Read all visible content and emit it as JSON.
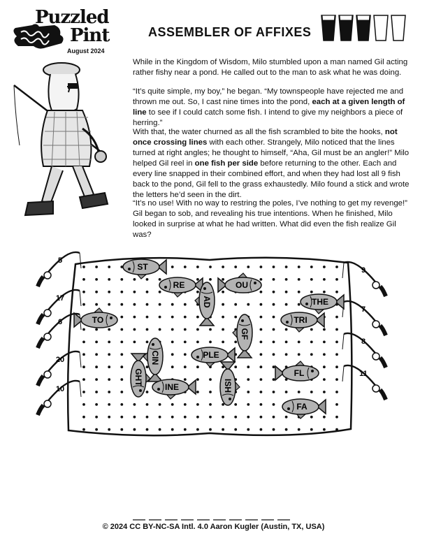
{
  "logo": {
    "line1": "Puzzled",
    "line2": "Pint",
    "date": "August 2024"
  },
  "title": "ASSEMBLER OF AFFIXES",
  "difficulty": {
    "filled": 3,
    "total": 5,
    "icon": "pint-glass-icon"
  },
  "story": {
    "p1": "While in the Kingdom of Wisdom, Milo stumbled upon a man named Gil acting rather fishy near a pond. He called out to the man to ask what he was doing.",
    "p2_a": "“It’s quite simple, my boy,” he began. “My townspeople have rejected me and thrown me out. So, I cast nine times into the pond, ",
    "p2_b": "each at a given length of line",
    "p2_c": " to see if I could catch some fish. I intend to give my neighbors a piece of herring.”",
    "p3_a": "With that, the water churned as all the fish scrambled to bite the hooks, ",
    "p3_b": "not once crossing lines",
    "p3_c": " with each other. Strangely, Milo noticed that the lines turned at right angles; he thought to himself, “Aha, Gil must be an angler!” Milo helped Gil reel in ",
    "p3_d": "one fish per side",
    "p3_e": " before returning to the other. Each and every line snapped in their combined effort, and when they had lost all 9 fish back to the pond, Gil fell to the grass exhaustedly. Milo found a stick and wrote the letters he’d seen in the dirt.",
    "p4": "“It’s no use! With no way to restring the poles, I’ve nothing to get my revenge!” Gil began to sob, and revealing his true intentions. When he finished, Milo looked in surprise at what he had written. What did even the fish realize Gil was?"
  },
  "rods_left": [
    {
      "label": "5",
      "icon": "fishing-rod-icon"
    },
    {
      "label": "17",
      "icon": "fishing-rod-icon"
    },
    {
      "label": "6",
      "icon": "fishing-rod-icon"
    },
    {
      "label": "20",
      "icon": "fishing-rod-icon"
    },
    {
      "label": "10",
      "icon": "fishing-rod-icon"
    }
  ],
  "rods_right": [
    {
      "label": "9",
      "icon": "fishing-rod-icon"
    },
    {
      "label": "7",
      "icon": "fishing-rod-icon"
    },
    {
      "label": "8",
      "icon": "fishing-rod-icon"
    },
    {
      "label": "11",
      "icon": "fishing-rod-icon"
    }
  ],
  "fish": [
    {
      "label": "ST",
      "orientation": "horizontal",
      "facing": "left"
    },
    {
      "label": "RE",
      "orientation": "horizontal",
      "facing": "left"
    },
    {
      "label": "OU",
      "orientation": "horizontal",
      "facing": "right"
    },
    {
      "label": "AD",
      "orientation": "vertical",
      "facing": "up"
    },
    {
      "label": "THE",
      "orientation": "horizontal",
      "facing": "left"
    },
    {
      "label": "TO",
      "orientation": "horizontal",
      "facing": "right"
    },
    {
      "label": "TRI",
      "orientation": "horizontal",
      "facing": "left"
    },
    {
      "label": "GF",
      "orientation": "vertical",
      "facing": "up"
    },
    {
      "label": "CIN",
      "orientation": "vertical",
      "facing": "up"
    },
    {
      "label": "PLE",
      "orientation": "horizontal",
      "facing": "left"
    },
    {
      "label": "GHT",
      "orientation": "vertical",
      "facing": "down"
    },
    {
      "label": "FL",
      "orientation": "horizontal",
      "facing": "right"
    },
    {
      "label": "ISH",
      "orientation": "vertical",
      "facing": "down"
    },
    {
      "label": "INE",
      "orientation": "horizontal",
      "facing": "left"
    },
    {
      "label": "FA",
      "orientation": "horizontal",
      "facing": "left"
    }
  ],
  "answer_blank_count": 10,
  "footer": "© 2024 CC BY-NC-SA Intl. 4.0 Aaron Kugler (Austin, TX, USA)"
}
